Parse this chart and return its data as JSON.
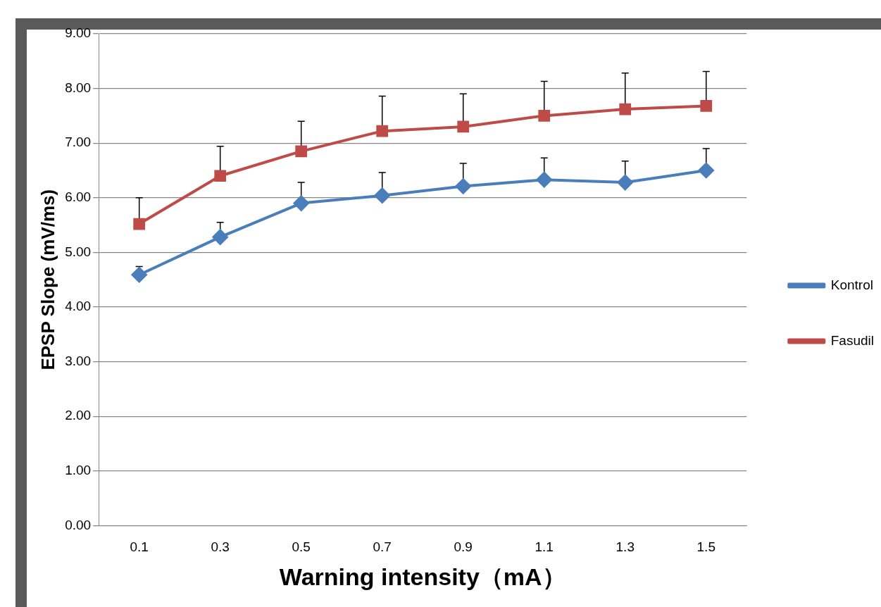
{
  "chart_data": {
    "type": "line",
    "xlabel": "Warning intensity（mA）",
    "ylabel": "EPSP Slope (mV/ms)",
    "categories": [
      "0.1",
      "0.3",
      "0.5",
      "0.7",
      "0.9",
      "1.1",
      "1.3",
      "1.5"
    ],
    "series": [
      {
        "name": "Kontrol",
        "color": "#4a7ebb",
        "marker": "diamond",
        "values": [
          4.59,
          5.28,
          5.9,
          6.04,
          6.21,
          6.33,
          6.28,
          6.5
        ],
        "errors": [
          [
            4.59,
            4.74
          ],
          [
            5.28,
            5.55
          ],
          [
            5.9,
            6.28
          ],
          [
            6.04,
            6.46
          ],
          [
            6.21,
            6.63
          ],
          [
            6.33,
            6.73
          ],
          [
            6.28,
            6.67
          ],
          [
            6.5,
            6.9
          ]
        ]
      },
      {
        "name": "Fasudil",
        "color": "#be4b48",
        "marker": "square",
        "values": [
          5.52,
          6.4,
          6.85,
          7.22,
          7.3,
          7.5,
          7.62,
          7.68
        ],
        "errors": [
          [
            5.52,
            6.0
          ],
          [
            6.4,
            6.94
          ],
          [
            6.85,
            7.4
          ],
          [
            7.22,
            7.86
          ],
          [
            7.3,
            7.9
          ],
          [
            7.5,
            8.13
          ],
          [
            7.62,
            8.28
          ],
          [
            7.68,
            8.31
          ]
        ]
      }
    ],
    "ylim": [
      0,
      9
    ],
    "yticks": [
      {
        "value": 0,
        "label": "0.00"
      },
      {
        "value": 1,
        "label": "1.00"
      },
      {
        "value": 2,
        "label": "2.00"
      },
      {
        "value": 3,
        "label": "3.00"
      },
      {
        "value": 4,
        "label": "4.00"
      },
      {
        "value": 5,
        "label": "5.00"
      },
      {
        "value": 6,
        "label": "6.00"
      },
      {
        "value": 7,
        "label": "7.00"
      },
      {
        "value": 8,
        "label": "8.00"
      },
      {
        "value": 9,
        "label": "9.00"
      }
    ],
    "grid": "y",
    "legend": "right",
    "line_style": "solid"
  }
}
